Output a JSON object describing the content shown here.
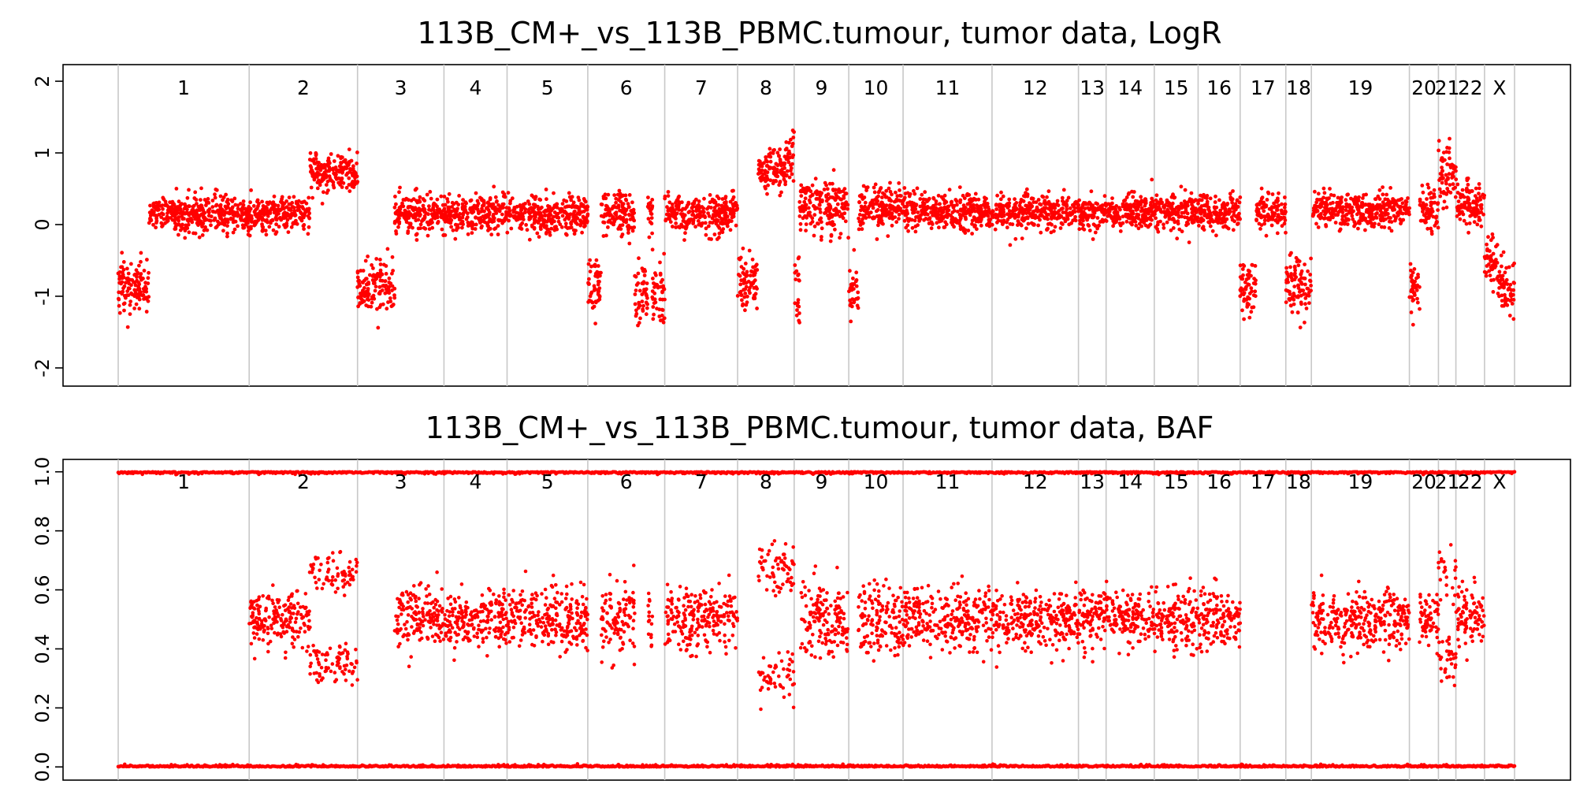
{
  "colors": {
    "points": "#ff0000",
    "boundaries": "#c8c8c8",
    "frame": "#000000"
  },
  "chart_data": [
    {
      "type": "scatter",
      "title": "113B_CM+_vs_113B_PBMC.tumour, tumor data, LogR",
      "xlabel": "",
      "ylabel": "",
      "ylim": [
        -2.1,
        2.1
      ],
      "yticks": [
        -2,
        -1,
        0,
        1,
        2
      ],
      "ytick_labels": [
        "-2",
        "-1",
        "0",
        "1",
        "2"
      ],
      "grid": false,
      "chromosomes": [
        "1",
        "2",
        "3",
        "4",
        "5",
        "6",
        "7",
        "8",
        "9",
        "10",
        "11",
        "12",
        "13",
        "14",
        "15",
        "16",
        "17",
        "18",
        "19",
        "20",
        "21",
        "22",
        "X"
      ],
      "chromosome_starts": [
        0,
        0.0938,
        0.1714,
        0.2333,
        0.2785,
        0.3363,
        0.3914,
        0.4436,
        0.4841,
        0.5232,
        0.5621,
        0.6258,
        0.6877,
        0.7075,
        0.742,
        0.7734,
        0.8035,
        0.8362,
        0.8545,
        0.9247,
        0.9455,
        0.958,
        0.9785,
        1.0
      ],
      "segments": [
        {
          "chr": "1",
          "from": 0.0,
          "to": 0.022,
          "mean": -0.85,
          "sd": 0.18
        },
        {
          "chr": "1",
          "from": 0.022,
          "to": 0.0938,
          "mean": 0.15,
          "sd": 0.13
        },
        {
          "chr": "2",
          "from": 0.0938,
          "to": 0.137,
          "mean": 0.15,
          "sd": 0.13
        },
        {
          "chr": "2",
          "from": 0.137,
          "to": 0.1714,
          "mean": 0.72,
          "sd": 0.13
        },
        {
          "chr": "3",
          "from": 0.1714,
          "to": 0.198,
          "mean": -0.85,
          "sd": 0.18
        },
        {
          "chr": "3",
          "from": 0.198,
          "to": 0.2333,
          "mean": 0.15,
          "sd": 0.13
        },
        {
          "chr": "4",
          "from": 0.2333,
          "to": 0.2785,
          "mean": 0.15,
          "sd": 0.13
        },
        {
          "chr": "5",
          "from": 0.2785,
          "to": 0.3363,
          "mean": 0.15,
          "sd": 0.13
        },
        {
          "chr": "6",
          "from": 0.3363,
          "to": 0.346,
          "mean": -0.85,
          "sd": 0.18
        },
        {
          "chr": "6",
          "from": 0.346,
          "to": 0.37,
          "mean": 0.15,
          "sd": 0.15
        },
        {
          "chr": "6",
          "from": 0.37,
          "to": 0.379,
          "mean": -0.95,
          "sd": 0.2
        },
        {
          "chr": "6",
          "from": 0.379,
          "to": 0.3825,
          "mean": 0.2,
          "sd": 0.15
        },
        {
          "chr": "6",
          "from": 0.3825,
          "to": 0.3914,
          "mean": -0.9,
          "sd": 0.18
        },
        {
          "chr": "7",
          "from": 0.3914,
          "to": 0.4436,
          "mean": 0.15,
          "sd": 0.13
        },
        {
          "chr": "8",
          "from": 0.4436,
          "to": 0.458,
          "mean": -0.8,
          "sd": 0.18
        },
        {
          "chr": "8",
          "from": 0.458,
          "to": 0.478,
          "mean": 0.75,
          "sd": 0.14
        },
        {
          "chr": "8",
          "from": 0.478,
          "to": 0.4841,
          "mean": 0.95,
          "sd": 0.2
        },
        {
          "chr": "9",
          "from": 0.4841,
          "to": 0.488,
          "mean": -0.9,
          "sd": 0.25
        },
        {
          "chr": "9",
          "from": 0.488,
          "to": 0.5232,
          "mean": 0.25,
          "sd": 0.2
        },
        {
          "chr": "10",
          "from": 0.5232,
          "to": 0.53,
          "mean": -0.9,
          "sd": 0.2
        },
        {
          "chr": "10",
          "from": 0.53,
          "to": 0.5621,
          "mean": 0.25,
          "sd": 0.14
        },
        {
          "chr": "11",
          "from": 0.5621,
          "to": 0.6258,
          "mean": 0.18,
          "sd": 0.12
        },
        {
          "chr": "12",
          "from": 0.6258,
          "to": 0.6877,
          "mean": 0.18,
          "sd": 0.12
        },
        {
          "chr": "13",
          "from": 0.6877,
          "to": 0.7075,
          "mean": 0.15,
          "sd": 0.12
        },
        {
          "chr": "14",
          "from": 0.7075,
          "to": 0.742,
          "mean": 0.18,
          "sd": 0.12
        },
        {
          "chr": "15",
          "from": 0.742,
          "to": 0.7734,
          "mean": 0.18,
          "sd": 0.12
        },
        {
          "chr": "16",
          "from": 0.7734,
          "to": 0.8035,
          "mean": 0.18,
          "sd": 0.12
        },
        {
          "chr": "17",
          "from": 0.8035,
          "to": 0.815,
          "mean": -0.9,
          "sd": 0.2
        },
        {
          "chr": "17",
          "from": 0.815,
          "to": 0.8362,
          "mean": 0.18,
          "sd": 0.12
        },
        {
          "chr": "18",
          "from": 0.8362,
          "to": 0.8545,
          "mean": -0.85,
          "sd": 0.2
        },
        {
          "chr": "19",
          "from": 0.8545,
          "to": 0.9247,
          "mean": 0.2,
          "sd": 0.12
        },
        {
          "chr": "20",
          "from": 0.9247,
          "to": 0.932,
          "mean": -0.9,
          "sd": 0.2
        },
        {
          "chr": "20",
          "from": 0.932,
          "to": 0.9455,
          "mean": 0.2,
          "sd": 0.13
        },
        {
          "chr": "21",
          "from": 0.9455,
          "to": 0.958,
          "mean": 0.7,
          "sd": 0.2
        },
        {
          "chr": "22",
          "from": 0.958,
          "to": 0.9785,
          "mean": 0.3,
          "sd": 0.15
        },
        {
          "chr": "X",
          "from": 0.9785,
          "to": 0.988,
          "mean": -0.5,
          "sd": 0.2
        },
        {
          "chr": "X",
          "from": 0.988,
          "to": 1.0,
          "mean": -0.85,
          "sd": 0.18
        }
      ]
    },
    {
      "type": "scatter",
      "title": "113B_CM+_vs_113B_PBMC.tumour, tumor data, BAF",
      "xlabel": "",
      "ylabel": "",
      "ylim": [
        -0.01,
        1.01
      ],
      "yticks": [
        0.0,
        0.2,
        0.4,
        0.6,
        0.8,
        1.0
      ],
      "ytick_labels": [
        "0.0",
        "0.2",
        "0.4",
        "0.6",
        "0.8",
        "1.0"
      ],
      "grid": false,
      "chromosomes": [
        "1",
        "2",
        "3",
        "4",
        "5",
        "6",
        "7",
        "8",
        "9",
        "10",
        "11",
        "12",
        "13",
        "14",
        "15",
        "16",
        "17",
        "18",
        "19",
        "20",
        "21",
        "22",
        "X"
      ],
      "chromosome_starts": [
        0,
        0.0938,
        0.1714,
        0.2333,
        0.2785,
        0.3363,
        0.3914,
        0.4436,
        0.4841,
        0.5232,
        0.5621,
        0.6258,
        0.6877,
        0.7075,
        0.742,
        0.7734,
        0.8035,
        0.8362,
        0.8545,
        0.9247,
        0.9455,
        0.958,
        0.9785,
        1.0
      ],
      "homozygous_bands": [
        0.0,
        1.0
      ],
      "segments": [
        {
          "chr": "2",
          "from": 0.0938,
          "to": 0.137,
          "bands": [
            0.5
          ],
          "sd": 0.05
        },
        {
          "chr": "2",
          "from": 0.137,
          "to": 0.1714,
          "bands": [
            0.35,
            0.65
          ],
          "sd": 0.035
        },
        {
          "chr": "3",
          "from": 0.198,
          "to": 0.2333,
          "bands": [
            0.5
          ],
          "sd": 0.05
        },
        {
          "chr": "4",
          "from": 0.2333,
          "to": 0.2785,
          "bands": [
            0.5
          ],
          "sd": 0.05
        },
        {
          "chr": "5",
          "from": 0.2785,
          "to": 0.3363,
          "bands": [
            0.5
          ],
          "sd": 0.05
        },
        {
          "chr": "6",
          "from": 0.346,
          "to": 0.37,
          "bands": [
            0.5
          ],
          "sd": 0.06
        },
        {
          "chr": "6",
          "from": 0.379,
          "to": 0.3825,
          "bands": [
            0.5
          ],
          "sd": 0.06
        },
        {
          "chr": "7",
          "from": 0.3914,
          "to": 0.4436,
          "bands": [
            0.5
          ],
          "sd": 0.05
        },
        {
          "chr": "8",
          "from": 0.458,
          "to": 0.4841,
          "bands": [
            0.32,
            0.68
          ],
          "sd": 0.045
        },
        {
          "chr": "9",
          "from": 0.488,
          "to": 0.5232,
          "bands": [
            0.5
          ],
          "sd": 0.06
        },
        {
          "chr": "10",
          "from": 0.53,
          "to": 0.5621,
          "bands": [
            0.5
          ],
          "sd": 0.06
        },
        {
          "chr": "11",
          "from": 0.5621,
          "to": 0.6258,
          "bands": [
            0.5
          ],
          "sd": 0.05
        },
        {
          "chr": "12",
          "from": 0.6258,
          "to": 0.6877,
          "bands": [
            0.5
          ],
          "sd": 0.05
        },
        {
          "chr": "13",
          "from": 0.6877,
          "to": 0.7075,
          "bands": [
            0.5
          ],
          "sd": 0.05
        },
        {
          "chr": "14",
          "from": 0.7075,
          "to": 0.742,
          "bands": [
            0.5
          ],
          "sd": 0.05
        },
        {
          "chr": "15",
          "from": 0.742,
          "to": 0.7734,
          "bands": [
            0.5
          ],
          "sd": 0.05
        },
        {
          "chr": "16",
          "from": 0.7734,
          "to": 0.8035,
          "bands": [
            0.5
          ],
          "sd": 0.05
        },
        {
          "chr": "19",
          "from": 0.8545,
          "to": 0.9247,
          "bands": [
            0.5
          ],
          "sd": 0.05
        },
        {
          "chr": "20",
          "from": 0.932,
          "to": 0.9455,
          "bands": [
            0.5
          ],
          "sd": 0.05
        },
        {
          "chr": "21",
          "from": 0.9455,
          "to": 0.958,
          "bands": [
            0.35,
            0.65
          ],
          "sd": 0.05
        },
        {
          "chr": "22",
          "from": 0.958,
          "to": 0.9785,
          "bands": [
            0.5
          ],
          "sd": 0.05
        }
      ]
    }
  ]
}
